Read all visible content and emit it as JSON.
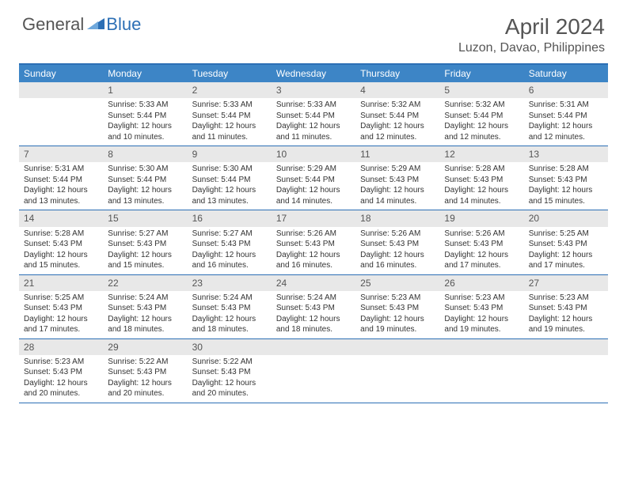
{
  "logo": {
    "text1": "General",
    "text2": "Blue"
  },
  "title": "April 2024",
  "location": "Luzon, Davao, Philippines",
  "colors": {
    "header_bar": "#3d85c6",
    "border": "#2c6fb5",
    "daynum_bg": "#e8e8e8",
    "text": "#333333",
    "muted": "#555555"
  },
  "weekdays": [
    "Sunday",
    "Monday",
    "Tuesday",
    "Wednesday",
    "Thursday",
    "Friday",
    "Saturday"
  ],
  "weeks": [
    [
      {
        "num": "",
        "sunrise": "",
        "sunset": "",
        "daylight": ""
      },
      {
        "num": "1",
        "sunrise": "Sunrise: 5:33 AM",
        "sunset": "Sunset: 5:44 PM",
        "daylight": "Daylight: 12 hours and 10 minutes."
      },
      {
        "num": "2",
        "sunrise": "Sunrise: 5:33 AM",
        "sunset": "Sunset: 5:44 PM",
        "daylight": "Daylight: 12 hours and 11 minutes."
      },
      {
        "num": "3",
        "sunrise": "Sunrise: 5:33 AM",
        "sunset": "Sunset: 5:44 PM",
        "daylight": "Daylight: 12 hours and 11 minutes."
      },
      {
        "num": "4",
        "sunrise": "Sunrise: 5:32 AM",
        "sunset": "Sunset: 5:44 PM",
        "daylight": "Daylight: 12 hours and 12 minutes."
      },
      {
        "num": "5",
        "sunrise": "Sunrise: 5:32 AM",
        "sunset": "Sunset: 5:44 PM",
        "daylight": "Daylight: 12 hours and 12 minutes."
      },
      {
        "num": "6",
        "sunrise": "Sunrise: 5:31 AM",
        "sunset": "Sunset: 5:44 PM",
        "daylight": "Daylight: 12 hours and 12 minutes."
      }
    ],
    [
      {
        "num": "7",
        "sunrise": "Sunrise: 5:31 AM",
        "sunset": "Sunset: 5:44 PM",
        "daylight": "Daylight: 12 hours and 13 minutes."
      },
      {
        "num": "8",
        "sunrise": "Sunrise: 5:30 AM",
        "sunset": "Sunset: 5:44 PM",
        "daylight": "Daylight: 12 hours and 13 minutes."
      },
      {
        "num": "9",
        "sunrise": "Sunrise: 5:30 AM",
        "sunset": "Sunset: 5:44 PM",
        "daylight": "Daylight: 12 hours and 13 minutes."
      },
      {
        "num": "10",
        "sunrise": "Sunrise: 5:29 AM",
        "sunset": "Sunset: 5:44 PM",
        "daylight": "Daylight: 12 hours and 14 minutes."
      },
      {
        "num": "11",
        "sunrise": "Sunrise: 5:29 AM",
        "sunset": "Sunset: 5:43 PM",
        "daylight": "Daylight: 12 hours and 14 minutes."
      },
      {
        "num": "12",
        "sunrise": "Sunrise: 5:28 AM",
        "sunset": "Sunset: 5:43 PM",
        "daylight": "Daylight: 12 hours and 14 minutes."
      },
      {
        "num": "13",
        "sunrise": "Sunrise: 5:28 AM",
        "sunset": "Sunset: 5:43 PM",
        "daylight": "Daylight: 12 hours and 15 minutes."
      }
    ],
    [
      {
        "num": "14",
        "sunrise": "Sunrise: 5:28 AM",
        "sunset": "Sunset: 5:43 PM",
        "daylight": "Daylight: 12 hours and 15 minutes."
      },
      {
        "num": "15",
        "sunrise": "Sunrise: 5:27 AM",
        "sunset": "Sunset: 5:43 PM",
        "daylight": "Daylight: 12 hours and 15 minutes."
      },
      {
        "num": "16",
        "sunrise": "Sunrise: 5:27 AM",
        "sunset": "Sunset: 5:43 PM",
        "daylight": "Daylight: 12 hours and 16 minutes."
      },
      {
        "num": "17",
        "sunrise": "Sunrise: 5:26 AM",
        "sunset": "Sunset: 5:43 PM",
        "daylight": "Daylight: 12 hours and 16 minutes."
      },
      {
        "num": "18",
        "sunrise": "Sunrise: 5:26 AM",
        "sunset": "Sunset: 5:43 PM",
        "daylight": "Daylight: 12 hours and 16 minutes."
      },
      {
        "num": "19",
        "sunrise": "Sunrise: 5:26 AM",
        "sunset": "Sunset: 5:43 PM",
        "daylight": "Daylight: 12 hours and 17 minutes."
      },
      {
        "num": "20",
        "sunrise": "Sunrise: 5:25 AM",
        "sunset": "Sunset: 5:43 PM",
        "daylight": "Daylight: 12 hours and 17 minutes."
      }
    ],
    [
      {
        "num": "21",
        "sunrise": "Sunrise: 5:25 AM",
        "sunset": "Sunset: 5:43 PM",
        "daylight": "Daylight: 12 hours and 17 minutes."
      },
      {
        "num": "22",
        "sunrise": "Sunrise: 5:24 AM",
        "sunset": "Sunset: 5:43 PM",
        "daylight": "Daylight: 12 hours and 18 minutes."
      },
      {
        "num": "23",
        "sunrise": "Sunrise: 5:24 AM",
        "sunset": "Sunset: 5:43 PM",
        "daylight": "Daylight: 12 hours and 18 minutes."
      },
      {
        "num": "24",
        "sunrise": "Sunrise: 5:24 AM",
        "sunset": "Sunset: 5:43 PM",
        "daylight": "Daylight: 12 hours and 18 minutes."
      },
      {
        "num": "25",
        "sunrise": "Sunrise: 5:23 AM",
        "sunset": "Sunset: 5:43 PM",
        "daylight": "Daylight: 12 hours and 19 minutes."
      },
      {
        "num": "26",
        "sunrise": "Sunrise: 5:23 AM",
        "sunset": "Sunset: 5:43 PM",
        "daylight": "Daylight: 12 hours and 19 minutes."
      },
      {
        "num": "27",
        "sunrise": "Sunrise: 5:23 AM",
        "sunset": "Sunset: 5:43 PM",
        "daylight": "Daylight: 12 hours and 19 minutes."
      }
    ],
    [
      {
        "num": "28",
        "sunrise": "Sunrise: 5:23 AM",
        "sunset": "Sunset: 5:43 PM",
        "daylight": "Daylight: 12 hours and 20 minutes."
      },
      {
        "num": "29",
        "sunrise": "Sunrise: 5:22 AM",
        "sunset": "Sunset: 5:43 PM",
        "daylight": "Daylight: 12 hours and 20 minutes."
      },
      {
        "num": "30",
        "sunrise": "Sunrise: 5:22 AM",
        "sunset": "Sunset: 5:43 PM",
        "daylight": "Daylight: 12 hours and 20 minutes."
      },
      {
        "num": "",
        "sunrise": "",
        "sunset": "",
        "daylight": ""
      },
      {
        "num": "",
        "sunrise": "",
        "sunset": "",
        "daylight": ""
      },
      {
        "num": "",
        "sunrise": "",
        "sunset": "",
        "daylight": ""
      },
      {
        "num": "",
        "sunrise": "",
        "sunset": "",
        "daylight": ""
      }
    ]
  ]
}
